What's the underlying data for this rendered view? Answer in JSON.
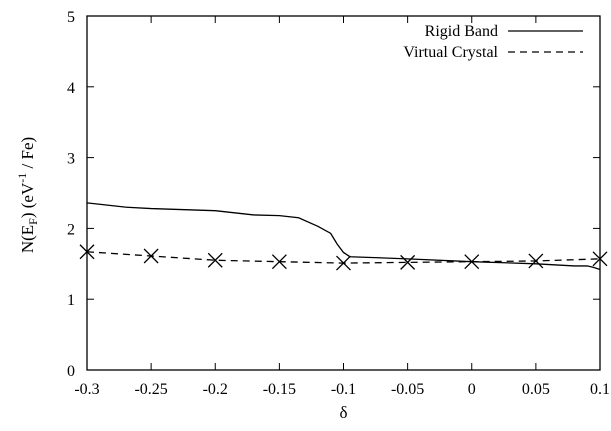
{
  "chart_data": {
    "type": "line",
    "title": "",
    "xlabel": "δ",
    "ylabel": {
      "pre": "N(E",
      "sub": "F",
      "mid": ") (eV",
      "sup": "-1",
      "post": " / Fe)"
    },
    "xlim": [
      -0.3,
      0.1
    ],
    "ylim": [
      0,
      5
    ],
    "xticks": [
      -0.3,
      -0.25,
      -0.2,
      -0.15,
      -0.1,
      -0.05,
      0,
      0.05,
      0.1
    ],
    "xtick_labels": [
      "-0.3",
      "-0.25",
      "-0.2",
      "-0.15",
      "-0.1",
      "-0.05",
      "0",
      "0.05",
      "0.1"
    ],
    "yticks": [
      0,
      1,
      2,
      3,
      4,
      5
    ],
    "ytick_labels": [
      "0",
      "1",
      "2",
      "3",
      "4",
      "5"
    ],
    "grid": false,
    "legend_position": "top-right",
    "series": [
      {
        "name": "Rigid Band",
        "style": "solid",
        "marker": "none",
        "x": [
          -0.3,
          -0.27,
          -0.25,
          -0.2,
          -0.17,
          -0.15,
          -0.135,
          -0.12,
          -0.11,
          -0.105,
          -0.1,
          -0.095,
          -0.05,
          0,
          0.05,
          0.08,
          0.09,
          0.095,
          0.1
        ],
        "y": [
          2.36,
          2.3,
          2.28,
          2.25,
          2.19,
          2.18,
          2.15,
          2.03,
          1.93,
          1.78,
          1.66,
          1.6,
          1.57,
          1.53,
          1.5,
          1.47,
          1.47,
          1.45,
          1.42
        ]
      },
      {
        "name": "Virtual Crystal",
        "style": "dashed",
        "marker": "x",
        "x": [
          -0.3,
          -0.25,
          -0.2,
          -0.15,
          -0.1,
          -0.05,
          0,
          0.05,
          0.1
        ],
        "y": [
          1.67,
          1.61,
          1.55,
          1.53,
          1.51,
          1.52,
          1.53,
          1.54,
          1.57
        ]
      }
    ]
  }
}
